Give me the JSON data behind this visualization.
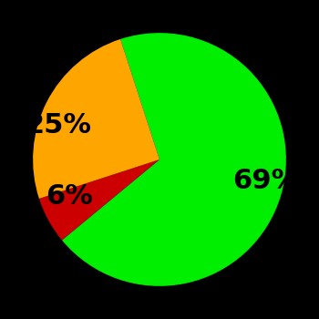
{
  "slices": [
    69,
    6,
    25
  ],
  "colors": [
    "#00ee00",
    "#cc0000",
    "#ffa500"
  ],
  "labels": [
    "69%",
    "6%",
    "25%"
  ],
  "background_color": "#000000",
  "label_fontsize": 22,
  "label_fontweight": "bold",
  "startangle": 108,
  "label_distance": 0.6
}
